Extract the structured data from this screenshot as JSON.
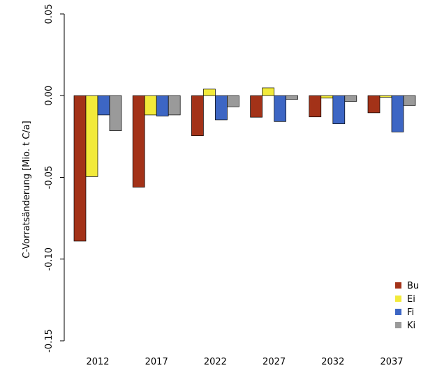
{
  "chart_data": {
    "type": "bar",
    "title": "",
    "xlabel": "",
    "ylabel": "C-Vorratsänderung [Mio. t C/a]",
    "ylim": [
      -0.15,
      0.05
    ],
    "yticks": [
      "-0.15",
      "-0.10",
      "-0.05",
      "0.00",
      "0.05"
    ],
    "ytick_values": [
      -0.15,
      -0.1,
      -0.05,
      0.0,
      0.05
    ],
    "categories": [
      "2012",
      "2017",
      "2022",
      "2027",
      "2032",
      "2037"
    ],
    "series": [
      {
        "name": "Bu",
        "color": "#a33218",
        "values": [
          -0.089,
          -0.056,
          -0.0245,
          -0.0132,
          -0.013,
          -0.0105
        ]
      },
      {
        "name": "Ei",
        "color": "#f2ea3a",
        "values": [
          -0.0495,
          -0.0118,
          0.004,
          0.0048,
          -0.0015,
          -0.001
        ]
      },
      {
        "name": "Fi",
        "color": "#3d66c4",
        "values": [
          -0.0118,
          -0.0125,
          -0.0148,
          -0.0158,
          -0.0172,
          -0.0222
        ]
      },
      {
        "name": "Ki",
        "color": "#9a9a9a",
        "values": [
          -0.0215,
          -0.0118,
          -0.0068,
          -0.0022,
          -0.0035,
          -0.006
        ]
      }
    ],
    "legend_position": "bottom-right",
    "grid": false
  }
}
